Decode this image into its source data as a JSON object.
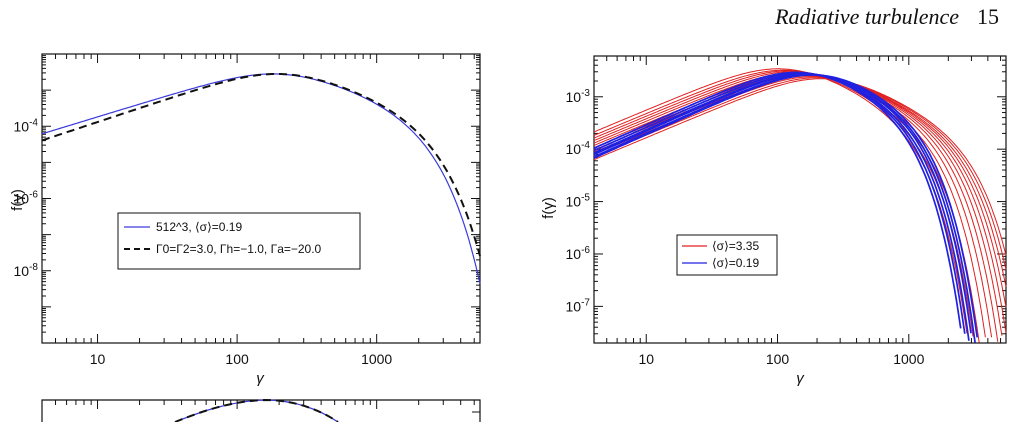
{
  "page_header": {
    "title": "Radiative turbulence",
    "page_number": "15"
  },
  "chart_data": [
    {
      "type": "line",
      "xscale": "log",
      "yscale": "log",
      "xlabel": "γ",
      "ylabel": "f(γ)",
      "xlim": [
        4,
        5500
      ],
      "ylim": [
        1e-10,
        0.01
      ],
      "xticklabels": [
        "10",
        "100",
        "1000"
      ],
      "yticklabels": [
        "10^-4",
        "10^-6",
        "10^-8"
      ],
      "grid": false,
      "legend": "center-left",
      "series": [
        {
          "name": "512^3, ⟨σ⟩=0.19",
          "color": "#3a3adc",
          "style": "solid",
          "shape": {
            "amp": 0.0028,
            "peak": 190,
            "lowIdx": 1.18,
            "cut": 1300,
            "cutPow": 1.6
          }
        },
        {
          "name": "Γ0=Γ2=3.0, Γh=−1.0, Γa=−20.0",
          "color": "#111111",
          "style": "dashed",
          "shape": {
            "amp": 0.0028,
            "peak": 195,
            "lowIdx": 1.28,
            "cut": 1400,
            "cutPow": 1.55
          }
        }
      ]
    },
    {
      "type": "line",
      "xscale": "log",
      "yscale": "log",
      "xlabel": "γ",
      "ylabel": "f(γ)",
      "xlim": [
        4,
        5500
      ],
      "ylim": [
        2e-08,
        0.006
      ],
      "xticklabels": [
        "10",
        "100",
        "1000"
      ],
      "yticklabels": [
        "10^-3",
        "10^-4",
        "10^-5",
        "10^-6",
        "10^-7"
      ],
      "grid": false,
      "legend": "center-left",
      "series": [
        {
          "name": "⟨σ⟩=3.35",
          "color": "#e02020",
          "peaks": [
            110,
            120,
            130,
            140,
            150,
            160,
            170,
            180,
            190,
            200,
            215,
            230
          ],
          "amps": [
            0.0034,
            0.0032,
            0.0031,
            0.003,
            0.0029,
            0.0028,
            0.0027,
            0.0026,
            0.0025,
            0.0024,
            0.0023,
            0.0022
          ],
          "cuts": [
            900,
            1000,
            1100,
            1250,
            1400,
            1550,
            1700,
            1850,
            2000,
            2150,
            2300,
            2450
          ]
        },
        {
          "name": "⟨σ⟩=0.19",
          "color": "#2020e0",
          "peaks": [
            150,
            160,
            170,
            180,
            190,
            200
          ],
          "amps": [
            0.0029,
            0.0028,
            0.0027,
            0.0027,
            0.0026,
            0.0026
          ],
          "cuts": [
            800,
            850,
            900,
            950,
            1000,
            1050
          ]
        }
      ]
    },
    {
      "type": "line",
      "xscale": "log",
      "yscale": "log",
      "partial": true,
      "series": [
        {
          "color": "#3a3adc",
          "style": "solid"
        },
        {
          "color": "#111111",
          "style": "dashed"
        }
      ]
    }
  ]
}
